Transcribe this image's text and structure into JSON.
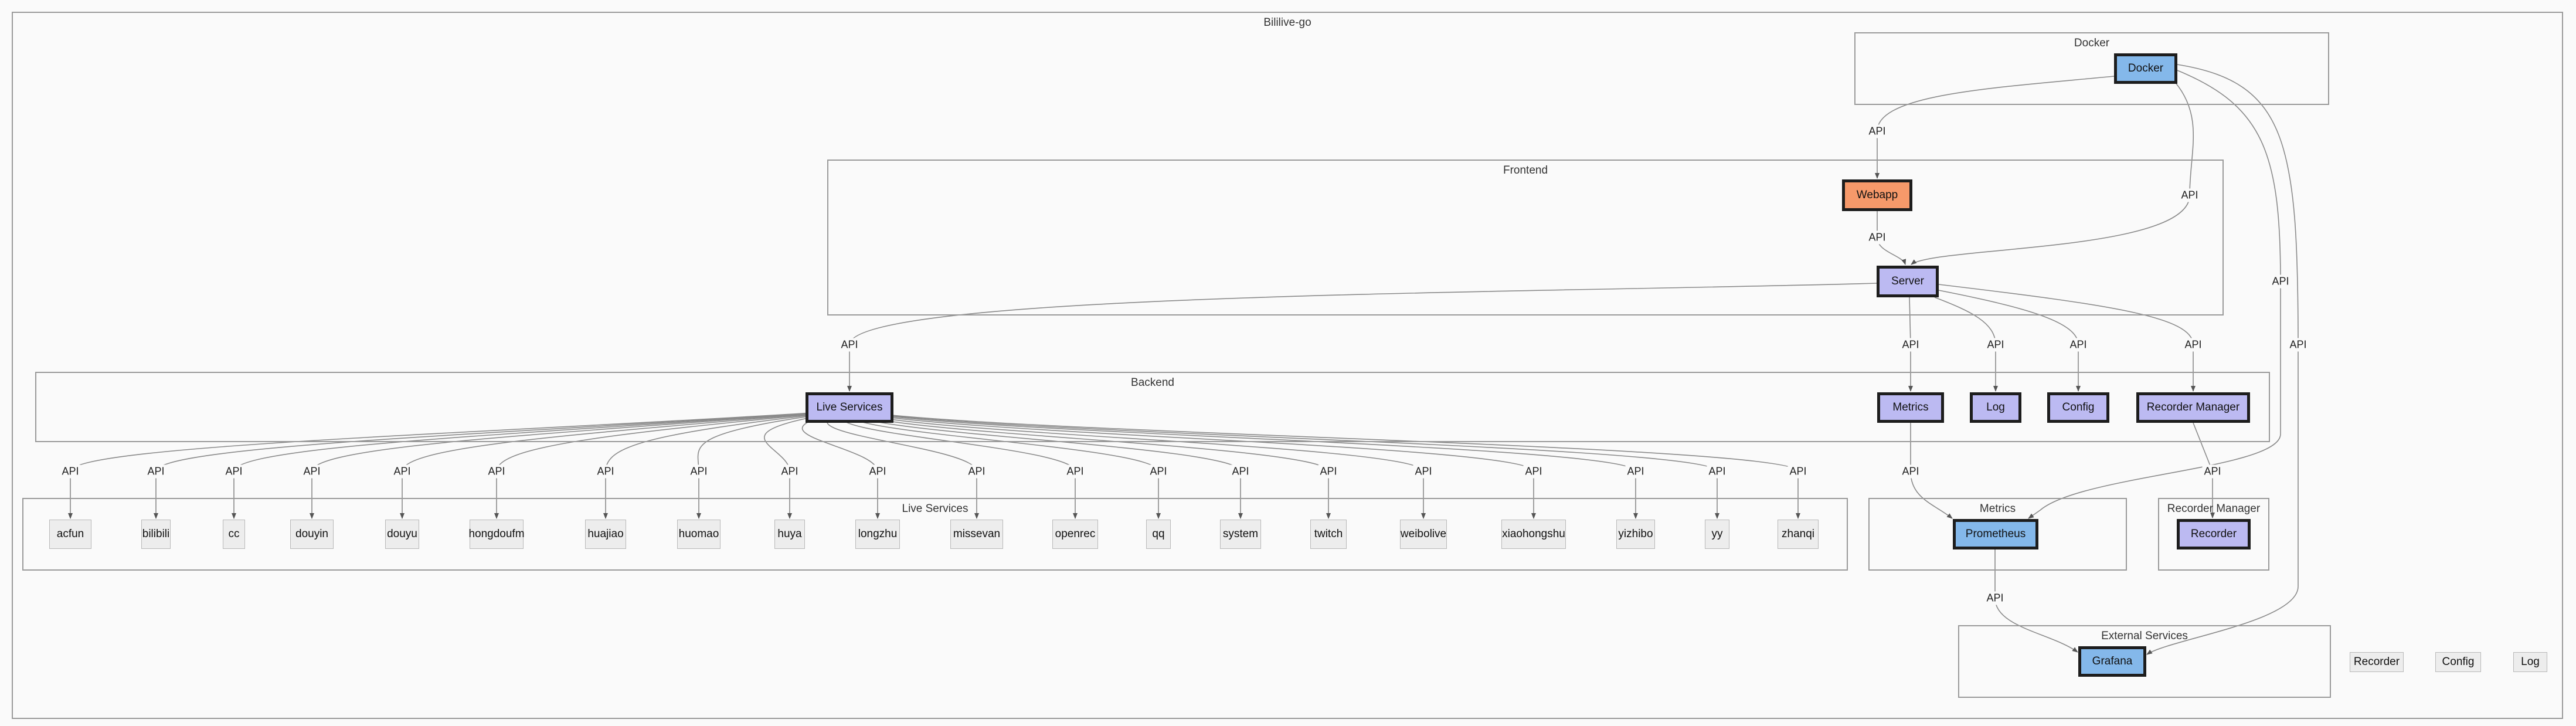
{
  "title": "Bililive-go",
  "clusters": {
    "docker": "Docker",
    "frontend": "Frontend",
    "backend": "Backend",
    "live_services": "Live Services",
    "metrics": "Metrics",
    "recorder_manager": "Recorder Manager",
    "external_services": "External Services"
  },
  "nodes": {
    "docker": "Docker",
    "webapp": "Webapp",
    "server": "Server",
    "live_services": "Live Services",
    "metrics": "Metrics",
    "log": "Log",
    "config": "Config",
    "recorder_manager": "Recorder Manager",
    "prometheus": "Prometheus",
    "recorder": "Recorder",
    "grafana": "Grafana",
    "legend_recorder": "Recorder",
    "legend_config": "Config",
    "legend_log": "Log"
  },
  "platforms": [
    "acfun",
    "bilibili",
    "cc",
    "douyin",
    "douyu",
    "hongdoufm",
    "huajiao",
    "huomao",
    "huya",
    "longzhu",
    "missevan",
    "openrec",
    "qq",
    "system",
    "twitch",
    "weibolive",
    "xiaohongshu",
    "yizhibo",
    "yy",
    "zhanqi"
  ],
  "edge_label": "API",
  "colors": {
    "blue_node": "#84b8ea",
    "purple_node": "#bcbaf2",
    "orange_node": "#f6996a",
    "plain_node": "#ededed"
  }
}
